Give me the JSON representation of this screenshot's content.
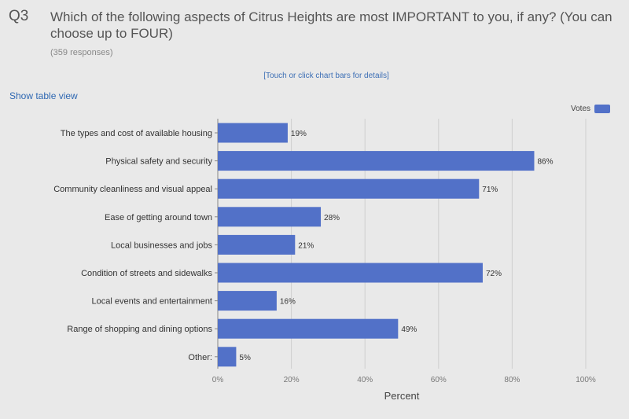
{
  "question": {
    "number": "Q3",
    "text": "Which of the following aspects of Citrus Heights are most IMPORTANT to you, if any? (You can choose up to FOUR)",
    "responses": "(359 responses)"
  },
  "hint": "[Touch or click chart bars for details]",
  "table_view_link": "Show table view",
  "colors": {
    "bar": "#5271c8",
    "grid": "#cfcfcf",
    "axis": "#888888"
  },
  "chart_data": {
    "type": "bar",
    "orientation": "horizontal",
    "categories": [
      "The types and cost of available housing",
      "Physical safety and security",
      "Community cleanliness and visual appeal",
      "Ease of getting around town",
      "Local businesses and jobs",
      "Condition of streets and sidewalks",
      "Local events and entertainment",
      "Range of shopping and dining options",
      "Other:"
    ],
    "series": [
      {
        "name": "Votes",
        "values": [
          19,
          86,
          71,
          28,
          21,
          72,
          16,
          49,
          5
        ]
      }
    ],
    "value_labels": [
      "19%",
      "86%",
      "71%",
      "28%",
      "21%",
      "72%",
      "16%",
      "49%",
      "5%"
    ],
    "xlabel": "Percent",
    "xlim": [
      0,
      100
    ],
    "x_ticks": [
      "0%",
      "20%",
      "40%",
      "60%",
      "80%",
      "100%"
    ],
    "grid": true,
    "legend": "top-right"
  }
}
